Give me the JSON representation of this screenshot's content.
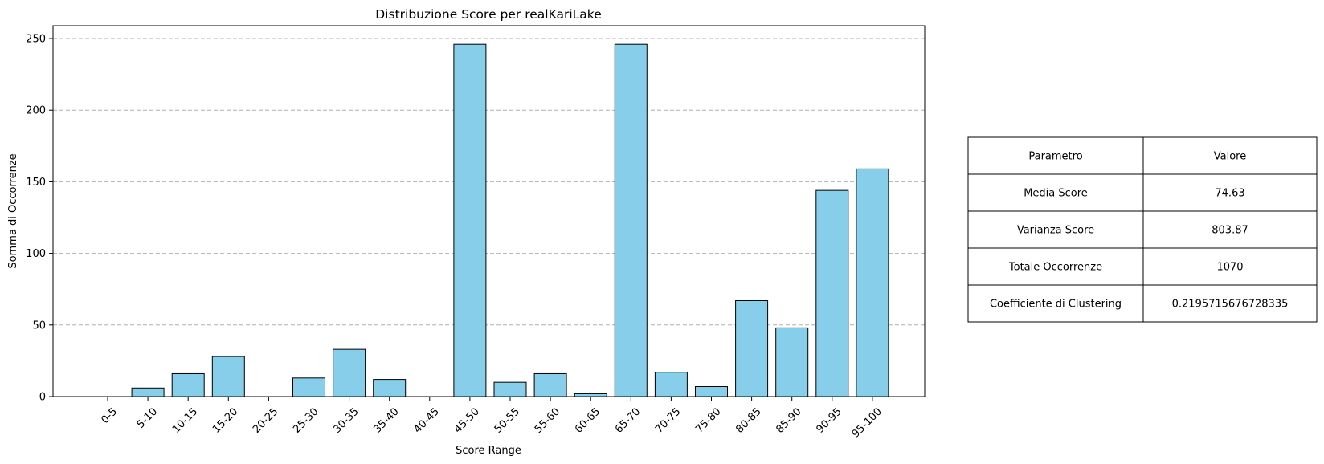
{
  "chart_data": {
    "type": "bar",
    "title": "Distribuzione Score per realKariLake",
    "xlabel": "Score Range",
    "ylabel": "Somma di Occorrenze",
    "categories": [
      "0-5",
      "5-10",
      "10-15",
      "15-20",
      "20-25",
      "25-30",
      "30-35",
      "35-40",
      "40-45",
      "45-50",
      "50-55",
      "55-60",
      "60-65",
      "65-70",
      "70-75",
      "75-80",
      "80-85",
      "85-90",
      "90-95",
      "95-100"
    ],
    "values": [
      0,
      6,
      16,
      28,
      0,
      13,
      33,
      12,
      0,
      246,
      10,
      16,
      2,
      246,
      17,
      7,
      67,
      48,
      144,
      159
    ],
    "ylim": [
      0,
      259
    ],
    "yticks": [
      0,
      50,
      100,
      150,
      200,
      250
    ],
    "grid": "y-dashed",
    "bar_color": "#87ceeb",
    "edge_color": "#000000",
    "grid_color": "#b0b0b0"
  },
  "stats_table": {
    "headers": [
      "Parametro",
      "Valore"
    ],
    "rows": [
      [
        "Media Score",
        "74.63"
      ],
      [
        "Varianza Score",
        "803.87"
      ],
      [
        "Totale Occorrenze",
        "1070"
      ],
      [
        "Coefficiente di Clustering",
        "0.2195715676728335"
      ]
    ]
  }
}
